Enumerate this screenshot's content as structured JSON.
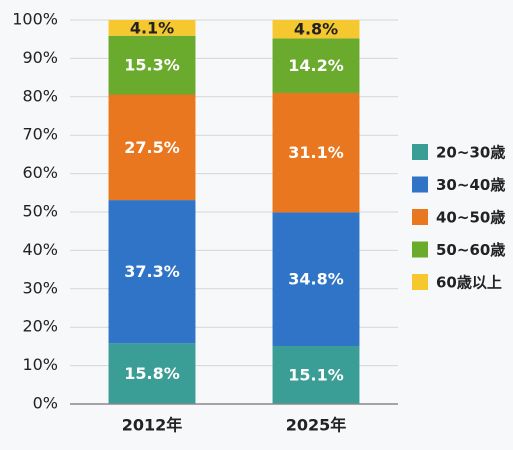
{
  "chart_data": {
    "type": "stacked_bar",
    "categories": [
      "2012年",
      "2025年"
    ],
    "series": [
      {
        "name": "20~30歳",
        "color": "#3a9e96",
        "values": [
          15.8,
          15.1
        ],
        "value_labels": [
          "15.8%",
          "15.1%"
        ]
      },
      {
        "name": "30~40歳",
        "color": "#2f74c6",
        "values": [
          37.3,
          34.8
        ],
        "value_labels": [
          "37.3%",
          "34.8%"
        ]
      },
      {
        "name": "40~50歳",
        "color": "#e8771f",
        "values": [
          27.5,
          31.1
        ],
        "value_labels": [
          "27.5%",
          "31.1%"
        ]
      },
      {
        "name": "50~60歳",
        "color": "#6aaa2c",
        "values": [
          15.3,
          14.2
        ],
        "value_labels": [
          "15.3%",
          "14.2%"
        ]
      },
      {
        "name": "60歳以上",
        "color": "#f5c830",
        "values": [
          4.1,
          4.8
        ],
        "value_labels": [
          "4.1%",
          "4.8%"
        ]
      }
    ],
    "ylim": [
      0,
      100
    ],
    "yticks": [
      {
        "value": 0,
        "label": "0%"
      },
      {
        "value": 10,
        "label": "10%"
      },
      {
        "value": 20,
        "label": "20%"
      },
      {
        "value": 30,
        "label": "30%"
      },
      {
        "value": 40,
        "label": "40%"
      },
      {
        "value": 50,
        "label": "50%"
      },
      {
        "value": 60,
        "label": "60%"
      },
      {
        "value": 70,
        "label": "70%"
      },
      {
        "value": 80,
        "label": "80%"
      },
      {
        "value": 90,
        "label": "90%"
      },
      {
        "value": 100,
        "label": "100%"
      }
    ],
    "grid": true,
    "legend": "right"
  }
}
